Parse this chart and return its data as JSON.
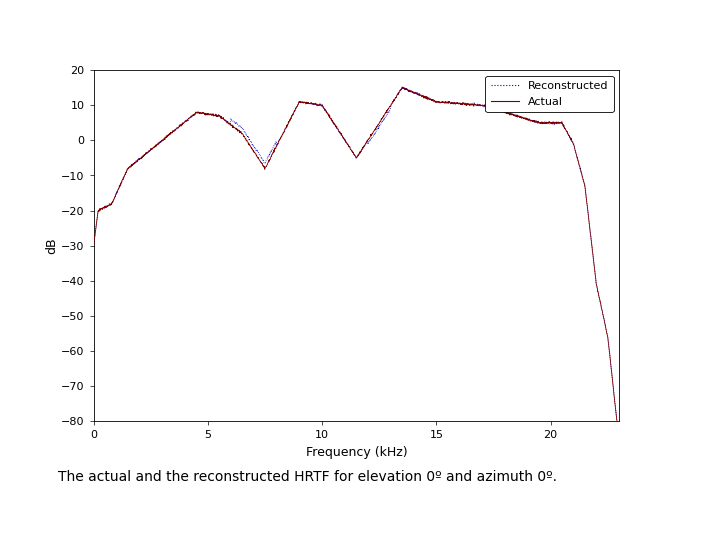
{
  "xlabel": "Frequency (kHz)",
  "ylabel": "dB",
  "xlim": [
    0,
    23
  ],
  "ylim": [
    -80,
    20
  ],
  "yticks": [
    20,
    10,
    0,
    -10,
    -20,
    -30,
    -40,
    -50,
    -60,
    -70,
    -80
  ],
  "xticks": [
    0,
    5,
    10,
    15,
    20
  ],
  "actual_color": "#800000",
  "reconstructed_color": "#0000cc",
  "legend_labels": [
    "Actual",
    "Reconstructed"
  ],
  "caption": "The actual and the reconstructed HRTF for elevation 0º and azimuth 0º.",
  "bg_color": "#ffffff",
  "axes_bg_color": "#ffffff",
  "figsize": [
    7.2,
    5.4
  ],
  "dpi": 100
}
